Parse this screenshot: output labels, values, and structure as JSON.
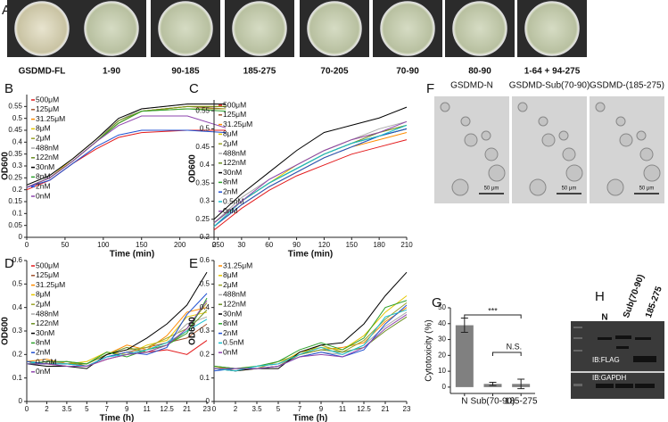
{
  "plates": {
    "label": "A",
    "names": [
      "GSDMD-FL",
      "1-90",
      "90-185",
      "185-275",
      "70-205",
      "70-90",
      "80-90",
      "1-64 + 94-275"
    ]
  },
  "chart_data": [
    {
      "type": "line",
      "panel": "B",
      "x_label": "Time (min)",
      "y_label": "OD600",
      "xlim": [
        0,
        275
      ],
      "xticks": [
        0,
        50,
        100,
        150,
        200,
        250
      ],
      "ylim": [
        0,
        0.6
      ],
      "yticks": [
        0,
        0.05,
        0.1,
        0.15,
        0.2,
        0.25,
        0.3,
        0.35,
        0.4,
        0.45,
        0.5,
        0.55
      ],
      "x": [
        0,
        30,
        60,
        90,
        120,
        150,
        210,
        260
      ],
      "series": [
        {
          "name": "500μM",
          "color": "#e31a1c",
          "values": [
            0.2,
            0.24,
            0.31,
            0.37,
            0.42,
            0.44,
            0.45,
            0.45
          ]
        },
        {
          "name": "125μM",
          "color": "#a0522d",
          "values": [
            0.21,
            0.25,
            0.32,
            0.4,
            0.48,
            0.53,
            0.55,
            0.54
          ]
        },
        {
          "name": "31.25μM",
          "color": "#ff8c00",
          "values": [
            0.21,
            0.25,
            0.32,
            0.4,
            0.48,
            0.53,
            0.55,
            0.55
          ]
        },
        {
          "name": "8μM",
          "color": "#e6c700",
          "values": [
            0.21,
            0.25,
            0.33,
            0.41,
            0.49,
            0.53,
            0.55,
            0.55
          ]
        },
        {
          "name": "2μM",
          "color": "#9aa32a",
          "values": [
            0.21,
            0.25,
            0.32,
            0.4,
            0.48,
            0.53,
            0.54,
            0.54
          ]
        },
        {
          "name": "488nM",
          "color": "#a9a9a9",
          "values": [
            0.22,
            0.26,
            0.33,
            0.41,
            0.49,
            0.54,
            0.56,
            0.56
          ]
        },
        {
          "name": "122nM",
          "color": "#6b8e23",
          "values": [
            0.21,
            0.25,
            0.32,
            0.4,
            0.49,
            0.53,
            0.55,
            0.55
          ]
        },
        {
          "name": "30nM",
          "color": "#000000",
          "values": [
            0.22,
            0.26,
            0.33,
            0.41,
            0.5,
            0.54,
            0.56,
            0.56
          ]
        },
        {
          "name": "8nM",
          "color": "#2ca02c",
          "values": [
            0.21,
            0.25,
            0.32,
            0.4,
            0.48,
            0.53,
            0.54,
            0.53
          ]
        },
        {
          "name": "2nM",
          "color": "#1f4fd0",
          "values": [
            0.21,
            0.24,
            0.31,
            0.38,
            0.43,
            0.45,
            0.45,
            0.44
          ]
        },
        {
          "name": "0nM",
          "color": "#8e44ad",
          "values": [
            0.21,
            0.25,
            0.32,
            0.4,
            0.47,
            0.51,
            0.51,
            0.46
          ]
        }
      ]
    },
    {
      "type": "line",
      "panel": "C",
      "x_label": "Time (min)",
      "y_label": "OD600",
      "xlim": [
        0,
        210
      ],
      "xticks": [
        0,
        30,
        60,
        90,
        120,
        150,
        180,
        210
      ],
      "ylim": [
        0.2,
        0.58
      ],
      "yticks": [
        0.2,
        0.25,
        0.3,
        0.35,
        0.4,
        0.45,
        0.5,
        0.55
      ],
      "x": [
        0,
        30,
        60,
        90,
        120,
        150,
        180,
        210
      ],
      "series": [
        {
          "name": "500μM",
          "color": "#e31a1c",
          "values": [
            0.22,
            0.28,
            0.33,
            0.37,
            0.4,
            0.43,
            0.45,
            0.47
          ]
        },
        {
          "name": "125μM",
          "color": "#a0522d",
          "values": [
            0.24,
            0.3,
            0.35,
            0.39,
            0.43,
            0.46,
            0.48,
            0.5
          ]
        },
        {
          "name": "31.25μM",
          "color": "#ff8c00",
          "values": [
            0.23,
            0.29,
            0.34,
            0.38,
            0.42,
            0.45,
            0.47,
            0.49
          ]
        },
        {
          "name": "8μM",
          "color": "#e6c700",
          "values": [
            0.24,
            0.3,
            0.35,
            0.4,
            0.44,
            0.47,
            0.49,
            0.51
          ]
        },
        {
          "name": "2μM",
          "color": "#9aa32a",
          "values": [
            0.23,
            0.29,
            0.34,
            0.38,
            0.42,
            0.45,
            0.48,
            0.5
          ]
        },
        {
          "name": "488nM",
          "color": "#a9a9a9",
          "values": [
            0.24,
            0.31,
            0.36,
            0.4,
            0.44,
            0.47,
            0.5,
            0.52
          ]
        },
        {
          "name": "122nM",
          "color": "#6b8e23",
          "values": [
            0.23,
            0.3,
            0.35,
            0.39,
            0.43,
            0.46,
            0.49,
            0.51
          ]
        },
        {
          "name": "30nM",
          "color": "#000000",
          "values": [
            0.25,
            0.32,
            0.38,
            0.44,
            0.49,
            0.51,
            0.53,
            0.56
          ]
        },
        {
          "name": "8nM",
          "color": "#2ca02c",
          "values": [
            0.24,
            0.3,
            0.35,
            0.39,
            0.43,
            0.46,
            0.48,
            0.5
          ]
        },
        {
          "name": "2nM",
          "color": "#1f4fd0",
          "values": [
            0.23,
            0.29,
            0.34,
            0.38,
            0.42,
            0.45,
            0.48,
            0.5
          ]
        },
        {
          "name": "0.5nM",
          "color": "#17becf",
          "values": [
            0.23,
            0.3,
            0.35,
            0.39,
            0.43,
            0.46,
            0.48,
            0.51
          ]
        },
        {
          "name": "0nM",
          "color": "#8e44ad",
          "values": [
            0.24,
            0.3,
            0.36,
            0.4,
            0.44,
            0.47,
            0.49,
            0.52
          ]
        }
      ]
    },
    {
      "type": "line",
      "panel": "D",
      "x_label": "Time (h)",
      "y_label": "OD600",
      "ylim": [
        0,
        0.6
      ],
      "yticks": [
        0,
        0.1,
        0.2,
        0.3,
        0.4,
        0.5,
        0.6
      ],
      "categories": [
        "0",
        "2",
        "3.5",
        "5",
        "7",
        "9",
        "11",
        "12.5",
        "21",
        "23"
      ],
      "series": [
        {
          "name": "500μM",
          "color": "#e31a1c",
          "values": [
            0.17,
            0.16,
            0.15,
            0.15,
            0.18,
            0.2,
            0.21,
            0.22,
            0.2,
            0.26
          ]
        },
        {
          "name": "125μM",
          "color": "#a0522d",
          "values": [
            0.16,
            0.16,
            0.17,
            0.15,
            0.19,
            0.21,
            0.23,
            0.25,
            0.27,
            0.33
          ]
        },
        {
          "name": "31.25μM",
          "color": "#ff8c00",
          "values": [
            0.17,
            0.18,
            0.16,
            0.16,
            0.2,
            0.24,
            0.22,
            0.28,
            0.38,
            0.4
          ]
        },
        {
          "name": "8μM",
          "color": "#e6c700",
          "values": [
            0.16,
            0.17,
            0.16,
            0.17,
            0.21,
            0.2,
            0.24,
            0.26,
            0.36,
            0.38
          ]
        },
        {
          "name": "2μM",
          "color": "#9aa32a",
          "values": [
            0.17,
            0.16,
            0.17,
            0.16,
            0.2,
            0.22,
            0.23,
            0.27,
            0.31,
            0.42
          ]
        },
        {
          "name": "488nM",
          "color": "#a9a9a9",
          "values": [
            0.16,
            0.17,
            0.16,
            0.15,
            0.19,
            0.21,
            0.22,
            0.25,
            0.33,
            0.36
          ]
        },
        {
          "name": "122nM",
          "color": "#6b8e23",
          "values": [
            0.17,
            0.16,
            0.16,
            0.16,
            0.2,
            0.23,
            0.21,
            0.24,
            0.3,
            0.39
          ]
        },
        {
          "name": "30nM",
          "color": "#000000",
          "values": [
            0.16,
            0.15,
            0.15,
            0.14,
            0.2,
            0.22,
            0.27,
            0.33,
            0.41,
            0.55
          ]
        },
        {
          "name": "8nM",
          "color": "#2ca02c",
          "values": [
            0.16,
            0.17,
            0.17,
            0.16,
            0.21,
            0.19,
            0.22,
            0.24,
            0.29,
            0.44
          ]
        },
        {
          "name": "2nM",
          "color": "#1f4fd0",
          "values": [
            0.17,
            0.16,
            0.16,
            0.15,
            0.19,
            0.21,
            0.2,
            0.23,
            0.37,
            0.46
          ]
        },
        {
          "name": "0.5nM",
          "color": "#17becf",
          "values": [
            0.16,
            0.16,
            0.16,
            0.15,
            0.19,
            0.2,
            0.22,
            0.25,
            0.3,
            0.35
          ]
        },
        {
          "name": "0nM",
          "color": "#8e44ad",
          "values": [
            0.16,
            0.16,
            0.15,
            0.15,
            0.18,
            0.2,
            0.21,
            0.24,
            0.31,
            0.43
          ]
        }
      ]
    },
    {
      "type": "line",
      "panel": "E",
      "x_label": "Time (h)",
      "y_label": "OD600",
      "ylim": [
        0,
        0.6
      ],
      "yticks": [
        0,
        0.1,
        0.2,
        0.3,
        0.4,
        0.5,
        0.6
      ],
      "categories": [
        "0",
        "2",
        "3.5",
        "5",
        "7",
        "9",
        "11",
        "12.5",
        "21",
        "23"
      ],
      "series": [
        {
          "name": "31.25μM",
          "color": "#ff8c00",
          "values": [
            0.15,
            0.13,
            0.14,
            0.15,
            0.2,
            0.22,
            0.23,
            0.25,
            0.34,
            0.4
          ]
        },
        {
          "name": "8μM",
          "color": "#e6c700",
          "values": [
            0.14,
            0.14,
            0.15,
            0.16,
            0.21,
            0.23,
            0.22,
            0.28,
            0.38,
            0.45
          ]
        },
        {
          "name": "2μM",
          "color": "#9aa32a",
          "values": [
            0.15,
            0.14,
            0.14,
            0.17,
            0.2,
            0.24,
            0.21,
            0.26,
            0.35,
            0.42
          ]
        },
        {
          "name": "488nM",
          "color": "#a9a9a9",
          "values": [
            0.14,
            0.13,
            0.15,
            0.16,
            0.19,
            0.21,
            0.2,
            0.24,
            0.32,
            0.38
          ]
        },
        {
          "name": "122nM",
          "color": "#6b8e23",
          "values": [
            0.15,
            0.14,
            0.14,
            0.15,
            0.2,
            0.22,
            0.21,
            0.23,
            0.3,
            0.36
          ]
        },
        {
          "name": "30nM",
          "color": "#000000",
          "values": [
            0.14,
            0.13,
            0.14,
            0.14,
            0.21,
            0.24,
            0.25,
            0.33,
            0.45,
            0.55
          ]
        },
        {
          "name": "8nM",
          "color": "#2ca02c",
          "values": [
            0.15,
            0.14,
            0.15,
            0.17,
            0.22,
            0.25,
            0.22,
            0.27,
            0.4,
            0.43
          ]
        },
        {
          "name": "2nM",
          "color": "#1f4fd0",
          "values": [
            0.13,
            0.14,
            0.14,
            0.15,
            0.19,
            0.21,
            0.19,
            0.22,
            0.33,
            0.41
          ]
        },
        {
          "name": "0.5nM",
          "color": "#17becf",
          "values": [
            0.14,
            0.13,
            0.15,
            0.16,
            0.2,
            0.23,
            0.2,
            0.24,
            0.36,
            0.39
          ]
        },
        {
          "name": "0nM",
          "color": "#8e44ad",
          "values": [
            0.14,
            0.14,
            0.14,
            0.15,
            0.19,
            0.2,
            0.19,
            0.23,
            0.31,
            0.37
          ]
        }
      ]
    },
    {
      "type": "bar",
      "panel": "G",
      "y_label": "Cytotoxicity (%)",
      "ylim": [
        -4,
        50
      ],
      "yticks": [
        0,
        10,
        20,
        30,
        40,
        50
      ],
      "categories": [
        "N",
        "Sub(70-90)",
        "185-275"
      ],
      "values": [
        39,
        2,
        2
      ],
      "errors": [
        4.5,
        1,
        3
      ],
      "color": "#808080",
      "annotations": [
        "***",
        "N.S."
      ]
    }
  ],
  "micrographs": {
    "label": "F",
    "titles": [
      "GSDMD-N",
      "GSDMD-Sub(70-90)",
      "GSDMD-(185-275)"
    ],
    "scale_bars": [
      "50 μm",
      "50 μm",
      "50 μm"
    ]
  },
  "blot": {
    "label": "H",
    "lanes": [
      "N",
      "Sub(70-90)",
      "185-275"
    ],
    "bands": [
      "IB:FLAG",
      "IB:GAPDH"
    ]
  }
}
